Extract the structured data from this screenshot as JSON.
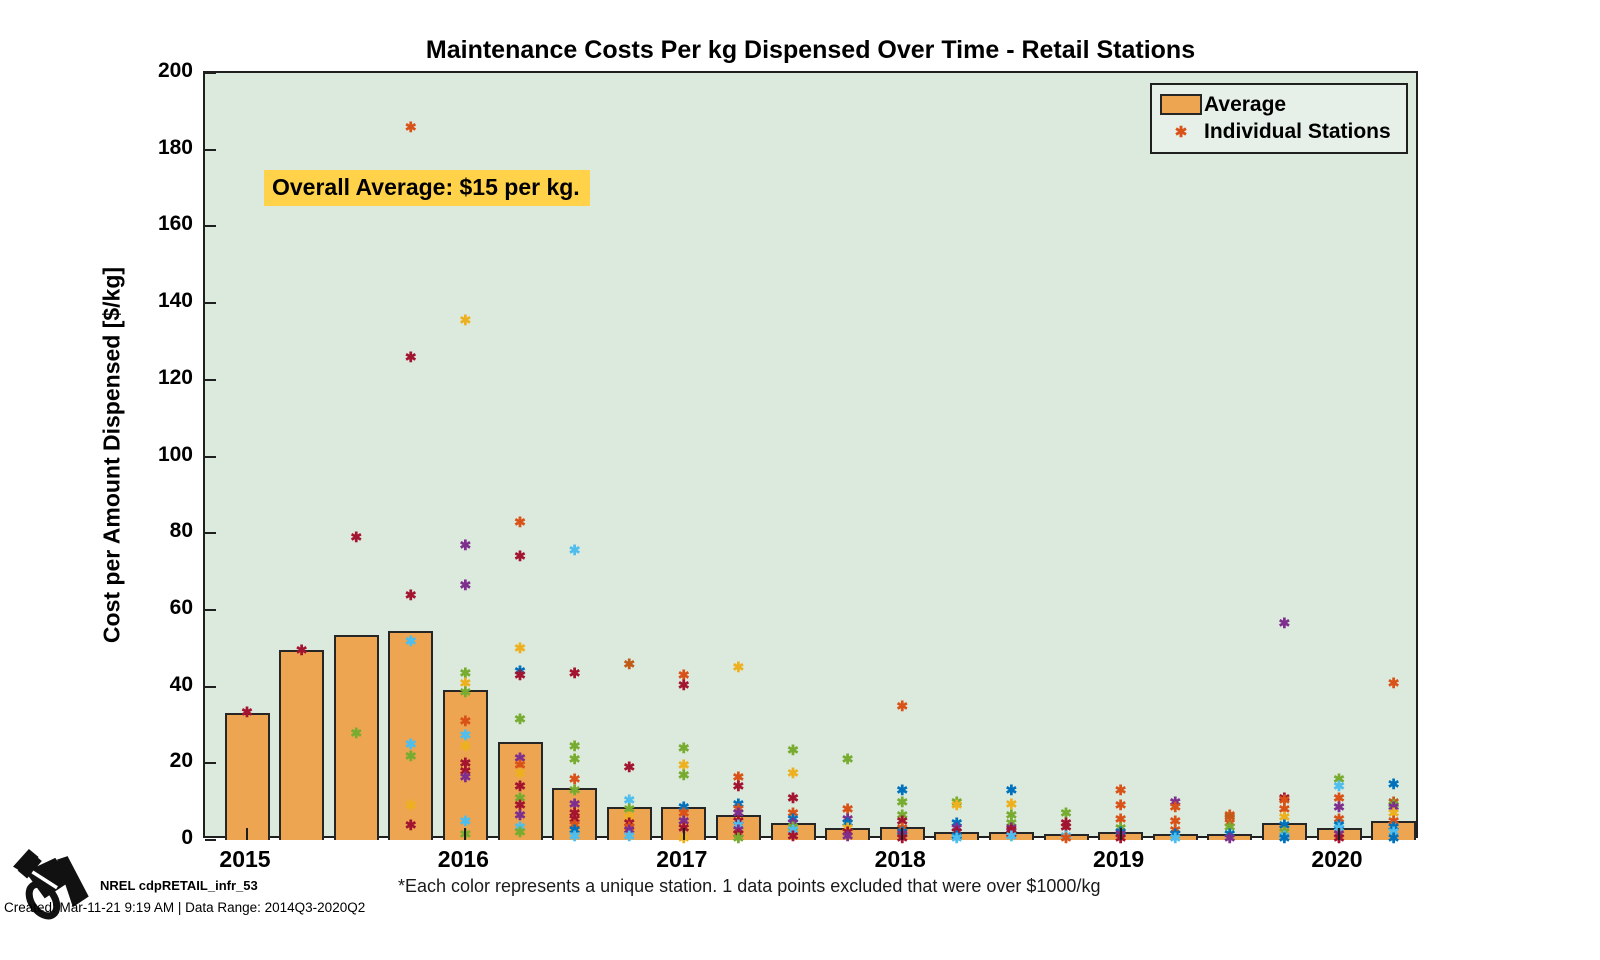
{
  "figure": {
    "title": "Maintenance Costs Per kg Dispensed Over Time - Retail Stations",
    "annotation": "Overall Average: $15 per kg.",
    "footnote": "*Each color represents a unique station. 1 data points excluded that were over $1000/kg",
    "credit_title": "NREL cdpRETAIL_infr_53",
    "credit_meta": "Created: Mar-11-21  9:19 AM | Data Range: 2014Q3-2020Q2"
  },
  "legend": {
    "items": [
      {
        "label": "Average",
        "marker": "bar-swatch"
      },
      {
        "label": "Individual Stations",
        "marker": "asterisk"
      }
    ]
  },
  "ui_colors": {
    "figure_background": "#ffffff",
    "axes_background": "#dce9dd",
    "bar_fill": "#eda551",
    "bar_edge": "#262626",
    "annotation_background": "#ffd24a",
    "legend_background": "#e7f0e8",
    "legend_marker_color": "#d95319",
    "text_color": "#000000"
  },
  "chart_data": {
    "type": "bar+scatter",
    "title": "Maintenance Costs Per kg Dispensed Over Time - Retail Stations",
    "xlabel": "",
    "ylabel": "Cost per Amount Dispensed [$/kg]",
    "ylim": [
      0,
      200
    ],
    "y_ticks": [
      0,
      20,
      40,
      60,
      80,
      100,
      120,
      140,
      160,
      180,
      200
    ],
    "x_tick_labels": [
      "2015",
      "2016",
      "2017",
      "2018",
      "2019",
      "2020"
    ],
    "grid": false,
    "legend_position": "top-right-inside",
    "quarters": [
      "2015Q1",
      "2015Q2",
      "2015Q3",
      "2015Q4",
      "2016Q1",
      "2016Q2",
      "2016Q3",
      "2016Q4",
      "2017Q1",
      "2017Q2",
      "2017Q3",
      "2017Q4",
      "2018Q1",
      "2018Q2",
      "2018Q3",
      "2018Q4",
      "2019Q1",
      "2019Q2",
      "2019Q3",
      "2019Q4",
      "2020Q1",
      "2020Q2"
    ],
    "bar_series_name": "Average",
    "bar_values": [
      33,
      49.5,
      53.5,
      54.5,
      39,
      25.5,
      13.5,
      8.5,
      8.5,
      6.5,
      4.5,
      3,
      3.5,
      2,
      2,
      1.5,
      2,
      1.5,
      1.5,
      4.5,
      3,
      5
    ],
    "overall_average": 15,
    "station_colors": {
      "blue": "#0072BD",
      "orange": "#D95319",
      "gold": "#EDB120",
      "purple": "#7E2F8E",
      "green": "#77AC30",
      "lightblue": "#4DBEEE",
      "darkred": "#A2142F",
      "darkorange": "#BF5B17"
    },
    "scatter_series_name": "Individual Stations",
    "scatter_points": [
      {
        "quarter": "2015Q1",
        "value": 33.5,
        "color": "darkred"
      },
      {
        "quarter": "2015Q2",
        "value": 49.5,
        "color": "darkred"
      },
      {
        "quarter": "2015Q3",
        "value": 79,
        "color": "darkred"
      },
      {
        "quarter": "2015Q3",
        "value": 28,
        "color": "green"
      },
      {
        "quarter": "2015Q4",
        "value": 186,
        "color": "orange"
      },
      {
        "quarter": "2015Q4",
        "value": 126,
        "color": "darkred"
      },
      {
        "quarter": "2015Q4",
        "value": 64,
        "color": "darkred"
      },
      {
        "quarter": "2015Q4",
        "value": 52,
        "color": "lightblue"
      },
      {
        "quarter": "2015Q4",
        "value": 25,
        "color": "lightblue"
      },
      {
        "quarter": "2015Q4",
        "value": 22,
        "color": "green"
      },
      {
        "quarter": "2015Q4",
        "value": 9,
        "color": "gold"
      },
      {
        "quarter": "2015Q4",
        "value": 4,
        "color": "darkred"
      },
      {
        "quarter": "2016Q1",
        "value": 135.5,
        "color": "gold"
      },
      {
        "quarter": "2016Q1",
        "value": 77,
        "color": "purple"
      },
      {
        "quarter": "2016Q1",
        "value": 66.5,
        "color": "purple"
      },
      {
        "quarter": "2016Q1",
        "value": 43.5,
        "color": "green"
      },
      {
        "quarter": "2016Q1",
        "value": 41,
        "color": "gold"
      },
      {
        "quarter": "2016Q1",
        "value": 38.5,
        "color": "green"
      },
      {
        "quarter": "2016Q1",
        "value": 31,
        "color": "orange"
      },
      {
        "quarter": "2016Q1",
        "value": 27.5,
        "color": "lightblue"
      },
      {
        "quarter": "2016Q1",
        "value": 24.5,
        "color": "gold"
      },
      {
        "quarter": "2016Q1",
        "value": 20,
        "color": "darkred"
      },
      {
        "quarter": "2016Q1",
        "value": 18,
        "color": "darkred"
      },
      {
        "quarter": "2016Q1",
        "value": 16.5,
        "color": "purple"
      },
      {
        "quarter": "2016Q1",
        "value": 5,
        "color": "lightblue"
      },
      {
        "quarter": "2016Q1",
        "value": 1.5,
        "color": "green"
      },
      {
        "quarter": "2016Q2",
        "value": 83,
        "color": "orange"
      },
      {
        "quarter": "2016Q2",
        "value": 74,
        "color": "darkred"
      },
      {
        "quarter": "2016Q2",
        "value": 50,
        "color": "gold"
      },
      {
        "quarter": "2016Q2",
        "value": 44,
        "color": "blue"
      },
      {
        "quarter": "2016Q2",
        "value": 43,
        "color": "darkred"
      },
      {
        "quarter": "2016Q2",
        "value": 31.5,
        "color": "green"
      },
      {
        "quarter": "2016Q2",
        "value": 21.5,
        "color": "purple"
      },
      {
        "quarter": "2016Q2",
        "value": 19.5,
        "color": "orange"
      },
      {
        "quarter": "2016Q2",
        "value": 17.5,
        "color": "gold"
      },
      {
        "quarter": "2016Q2",
        "value": 14,
        "color": "darkred"
      },
      {
        "quarter": "2016Q2",
        "value": 11,
        "color": "green"
      },
      {
        "quarter": "2016Q2",
        "value": 9,
        "color": "darkred"
      },
      {
        "quarter": "2016Q2",
        "value": 6.5,
        "color": "purple"
      },
      {
        "quarter": "2016Q2",
        "value": 3.5,
        "color": "lightblue"
      },
      {
        "quarter": "2016Q2",
        "value": 2,
        "color": "green"
      },
      {
        "quarter": "2016Q3",
        "value": 75.5,
        "color": "lightblue"
      },
      {
        "quarter": "2016Q3",
        "value": 43.5,
        "color": "darkred"
      },
      {
        "quarter": "2016Q3",
        "value": 24.5,
        "color": "green"
      },
      {
        "quarter": "2016Q3",
        "value": 21,
        "color": "green"
      },
      {
        "quarter": "2016Q3",
        "value": 16,
        "color": "orange"
      },
      {
        "quarter": "2016Q3",
        "value": 13,
        "color": "green"
      },
      {
        "quarter": "2016Q3",
        "value": 9.5,
        "color": "purple"
      },
      {
        "quarter": "2016Q3",
        "value": 7,
        "color": "darkred"
      },
      {
        "quarter": "2016Q3",
        "value": 5.5,
        "color": "darkred"
      },
      {
        "quarter": "2016Q3",
        "value": 4,
        "color": "orange"
      },
      {
        "quarter": "2016Q3",
        "value": 2.5,
        "color": "blue"
      },
      {
        "quarter": "2016Q3",
        "value": 1,
        "color": "lightblue"
      },
      {
        "quarter": "2016Q4",
        "value": 46,
        "color": "darkorange"
      },
      {
        "quarter": "2016Q4",
        "value": 19,
        "color": "darkred"
      },
      {
        "quarter": "2016Q4",
        "value": 10.5,
        "color": "lightblue"
      },
      {
        "quarter": "2016Q4",
        "value": 8,
        "color": "green"
      },
      {
        "quarter": "2016Q4",
        "value": 6,
        "color": "gold"
      },
      {
        "quarter": "2016Q4",
        "value": 4.5,
        "color": "darkred"
      },
      {
        "quarter": "2016Q4",
        "value": 3.5,
        "color": "orange"
      },
      {
        "quarter": "2016Q4",
        "value": 2.5,
        "color": "purple"
      },
      {
        "quarter": "2016Q4",
        "value": 1,
        "color": "lightblue"
      },
      {
        "quarter": "2017Q1",
        "value": 43,
        "color": "orange"
      },
      {
        "quarter": "2017Q1",
        "value": 40.5,
        "color": "darkred"
      },
      {
        "quarter": "2017Q1",
        "value": 24,
        "color": "green"
      },
      {
        "quarter": "2017Q1",
        "value": 19.5,
        "color": "gold"
      },
      {
        "quarter": "2017Q1",
        "value": 17,
        "color": "green"
      },
      {
        "quarter": "2017Q1",
        "value": 8.5,
        "color": "blue"
      },
      {
        "quarter": "2017Q1",
        "value": 7,
        "color": "orange"
      },
      {
        "quarter": "2017Q1",
        "value": 5,
        "color": "purple"
      },
      {
        "quarter": "2017Q1",
        "value": 3,
        "color": "darkred"
      },
      {
        "quarter": "2017Q1",
        "value": 0.5,
        "color": "gold"
      },
      {
        "quarter": "2017Q2",
        "value": 45,
        "color": "gold"
      },
      {
        "quarter": "2017Q2",
        "value": 16.5,
        "color": "orange"
      },
      {
        "quarter": "2017Q2",
        "value": 14,
        "color": "darkred"
      },
      {
        "quarter": "2017Q2",
        "value": 9.5,
        "color": "blue"
      },
      {
        "quarter": "2017Q2",
        "value": 8,
        "color": "orange"
      },
      {
        "quarter": "2017Q2",
        "value": 7,
        "color": "purple"
      },
      {
        "quarter": "2017Q2",
        "value": 5,
        "color": "darkred"
      },
      {
        "quarter": "2017Q2",
        "value": 4,
        "color": "lightblue"
      },
      {
        "quarter": "2017Q2",
        "value": 2.5,
        "color": "purple"
      },
      {
        "quarter": "2017Q2",
        "value": 1.5,
        "color": "darkred"
      },
      {
        "quarter": "2017Q2",
        "value": 0.5,
        "color": "green"
      },
      {
        "quarter": "2017Q3",
        "value": 23.5,
        "color": "green"
      },
      {
        "quarter": "2017Q3",
        "value": 17.5,
        "color": "gold"
      },
      {
        "quarter": "2017Q3",
        "value": 11,
        "color": "darkred"
      },
      {
        "quarter": "2017Q3",
        "value": 7,
        "color": "orange"
      },
      {
        "quarter": "2017Q3",
        "value": 5.5,
        "color": "blue"
      },
      {
        "quarter": "2017Q3",
        "value": 4.5,
        "color": "purple"
      },
      {
        "quarter": "2017Q3",
        "value": 3.5,
        "color": "green"
      },
      {
        "quarter": "2017Q3",
        "value": 2.5,
        "color": "lightblue"
      },
      {
        "quarter": "2017Q3",
        "value": 1,
        "color": "darkred"
      },
      {
        "quarter": "2017Q4",
        "value": 21,
        "color": "green"
      },
      {
        "quarter": "2017Q4",
        "value": 8,
        "color": "orange"
      },
      {
        "quarter": "2017Q4",
        "value": 5.5,
        "color": "purple"
      },
      {
        "quarter": "2017Q4",
        "value": 4.5,
        "color": "blue"
      },
      {
        "quarter": "2017Q4",
        "value": 3,
        "color": "gold"
      },
      {
        "quarter": "2017Q4",
        "value": 2,
        "color": "darkred"
      },
      {
        "quarter": "2017Q4",
        "value": 1,
        "color": "purple"
      },
      {
        "quarter": "2018Q1",
        "value": 35,
        "color": "orange"
      },
      {
        "quarter": "2018Q1",
        "value": 13,
        "color": "blue"
      },
      {
        "quarter": "2018Q1",
        "value": 10,
        "color": "green"
      },
      {
        "quarter": "2018Q1",
        "value": 6.5,
        "color": "green"
      },
      {
        "quarter": "2018Q1",
        "value": 5,
        "color": "darkred"
      },
      {
        "quarter": "2018Q1",
        "value": 3,
        "color": "orange"
      },
      {
        "quarter": "2018Q1",
        "value": 2,
        "color": "blue"
      },
      {
        "quarter": "2018Q1",
        "value": 1.5,
        "color": "purple"
      },
      {
        "quarter": "2018Q1",
        "value": 0.5,
        "color": "darkred"
      },
      {
        "quarter": "2018Q2",
        "value": 10,
        "color": "green"
      },
      {
        "quarter": "2018Q2",
        "value": 9,
        "color": "gold"
      },
      {
        "quarter": "2018Q2",
        "value": 4.5,
        "color": "blue"
      },
      {
        "quarter": "2018Q2",
        "value": 3,
        "color": "purple"
      },
      {
        "quarter": "2018Q2",
        "value": 2,
        "color": "darkred"
      },
      {
        "quarter": "2018Q2",
        "value": 1,
        "color": "blue"
      },
      {
        "quarter": "2018Q2",
        "value": 0.5,
        "color": "lightblue"
      },
      {
        "quarter": "2018Q3",
        "value": 13,
        "color": "blue"
      },
      {
        "quarter": "2018Q3",
        "value": 9.5,
        "color": "gold"
      },
      {
        "quarter": "2018Q3",
        "value": 6.5,
        "color": "green"
      },
      {
        "quarter": "2018Q3",
        "value": 4.5,
        "color": "green"
      },
      {
        "quarter": "2018Q3",
        "value": 3,
        "color": "purple"
      },
      {
        "quarter": "2018Q3",
        "value": 2.5,
        "color": "darkred"
      },
      {
        "quarter": "2018Q3",
        "value": 1.5,
        "color": "darkred"
      },
      {
        "quarter": "2018Q3",
        "value": 1,
        "color": "lightblue"
      },
      {
        "quarter": "2018Q4",
        "value": 7,
        "color": "green"
      },
      {
        "quarter": "2018Q4",
        "value": 4.5,
        "color": "darkred"
      },
      {
        "quarter": "2018Q4",
        "value": 3.5,
        "color": "darkred"
      },
      {
        "quarter": "2018Q4",
        "value": 1,
        "color": "lightblue"
      },
      {
        "quarter": "2018Q4",
        "value": 0.5,
        "color": "orange"
      },
      {
        "quarter": "2019Q1",
        "value": 13,
        "color": "orange"
      },
      {
        "quarter": "2019Q1",
        "value": 9,
        "color": "orange"
      },
      {
        "quarter": "2019Q1",
        "value": 5.5,
        "color": "orange"
      },
      {
        "quarter": "2019Q1",
        "value": 3,
        "color": "green"
      },
      {
        "quarter": "2019Q1",
        "value": 2,
        "color": "blue"
      },
      {
        "quarter": "2019Q1",
        "value": 1.5,
        "color": "purple"
      },
      {
        "quarter": "2019Q1",
        "value": 0.5,
        "color": "darkred"
      },
      {
        "quarter": "2019Q2",
        "value": 10,
        "color": "purple"
      },
      {
        "quarter": "2019Q2",
        "value": 8.5,
        "color": "orange"
      },
      {
        "quarter": "2019Q2",
        "value": 5,
        "color": "orange"
      },
      {
        "quarter": "2019Q2",
        "value": 2.5,
        "color": "orange"
      },
      {
        "quarter": "2019Q2",
        "value": 1.5,
        "color": "blue"
      },
      {
        "quarter": "2019Q2",
        "value": 0.5,
        "color": "lightblue"
      },
      {
        "quarter": "2019Q3",
        "value": 6.5,
        "color": "orange"
      },
      {
        "quarter": "2019Q3",
        "value": 6,
        "color": "darkorange"
      },
      {
        "quarter": "2019Q3",
        "value": 4.5,
        "color": "orange"
      },
      {
        "quarter": "2019Q3",
        "value": 3.5,
        "color": "green"
      },
      {
        "quarter": "2019Q3",
        "value": 1.5,
        "color": "blue"
      },
      {
        "quarter": "2019Q3",
        "value": 0.5,
        "color": "purple"
      },
      {
        "quarter": "2019Q4",
        "value": 56.5,
        "color": "purple"
      },
      {
        "quarter": "2019Q4",
        "value": 11,
        "color": "darkred"
      },
      {
        "quarter": "2019Q4",
        "value": 10.5,
        "color": "orange"
      },
      {
        "quarter": "2019Q4",
        "value": 8,
        "color": "orange"
      },
      {
        "quarter": "2019Q4",
        "value": 6,
        "color": "gold"
      },
      {
        "quarter": "2019Q4",
        "value": 4,
        "color": "blue"
      },
      {
        "quarter": "2019Q4",
        "value": 2,
        "color": "green"
      },
      {
        "quarter": "2019Q4",
        "value": 1,
        "color": "lightblue"
      },
      {
        "quarter": "2019Q4",
        "value": 0.5,
        "color": "blue"
      },
      {
        "quarter": "2020Q1",
        "value": 16,
        "color": "green"
      },
      {
        "quarter": "2020Q1",
        "value": 14,
        "color": "lightblue"
      },
      {
        "quarter": "2020Q1",
        "value": 11,
        "color": "orange"
      },
      {
        "quarter": "2020Q1",
        "value": 8.5,
        "color": "purple"
      },
      {
        "quarter": "2020Q1",
        "value": 5.5,
        "color": "orange"
      },
      {
        "quarter": "2020Q1",
        "value": 4,
        "color": "blue"
      },
      {
        "quarter": "2020Q1",
        "value": 3,
        "color": "lightblue"
      },
      {
        "quarter": "2020Q1",
        "value": 1.5,
        "color": "purple"
      },
      {
        "quarter": "2020Q1",
        "value": 0.5,
        "color": "darkred"
      },
      {
        "quarter": "2020Q2",
        "value": 41,
        "color": "orange"
      },
      {
        "quarter": "2020Q2",
        "value": 14.5,
        "color": "blue"
      },
      {
        "quarter": "2020Q2",
        "value": 10,
        "color": "darkorange"
      },
      {
        "quarter": "2020Q2",
        "value": 9,
        "color": "green"
      },
      {
        "quarter": "2020Q2",
        "value": 8.5,
        "color": "purple"
      },
      {
        "quarter": "2020Q2",
        "value": 7,
        "color": "gold"
      },
      {
        "quarter": "2020Q2",
        "value": 5,
        "color": "orange"
      },
      {
        "quarter": "2020Q2",
        "value": 3.5,
        "color": "blue"
      },
      {
        "quarter": "2020Q2",
        "value": 2,
        "color": "lightblue"
      },
      {
        "quarter": "2020Q2",
        "value": 0.5,
        "color": "blue"
      }
    ]
  }
}
